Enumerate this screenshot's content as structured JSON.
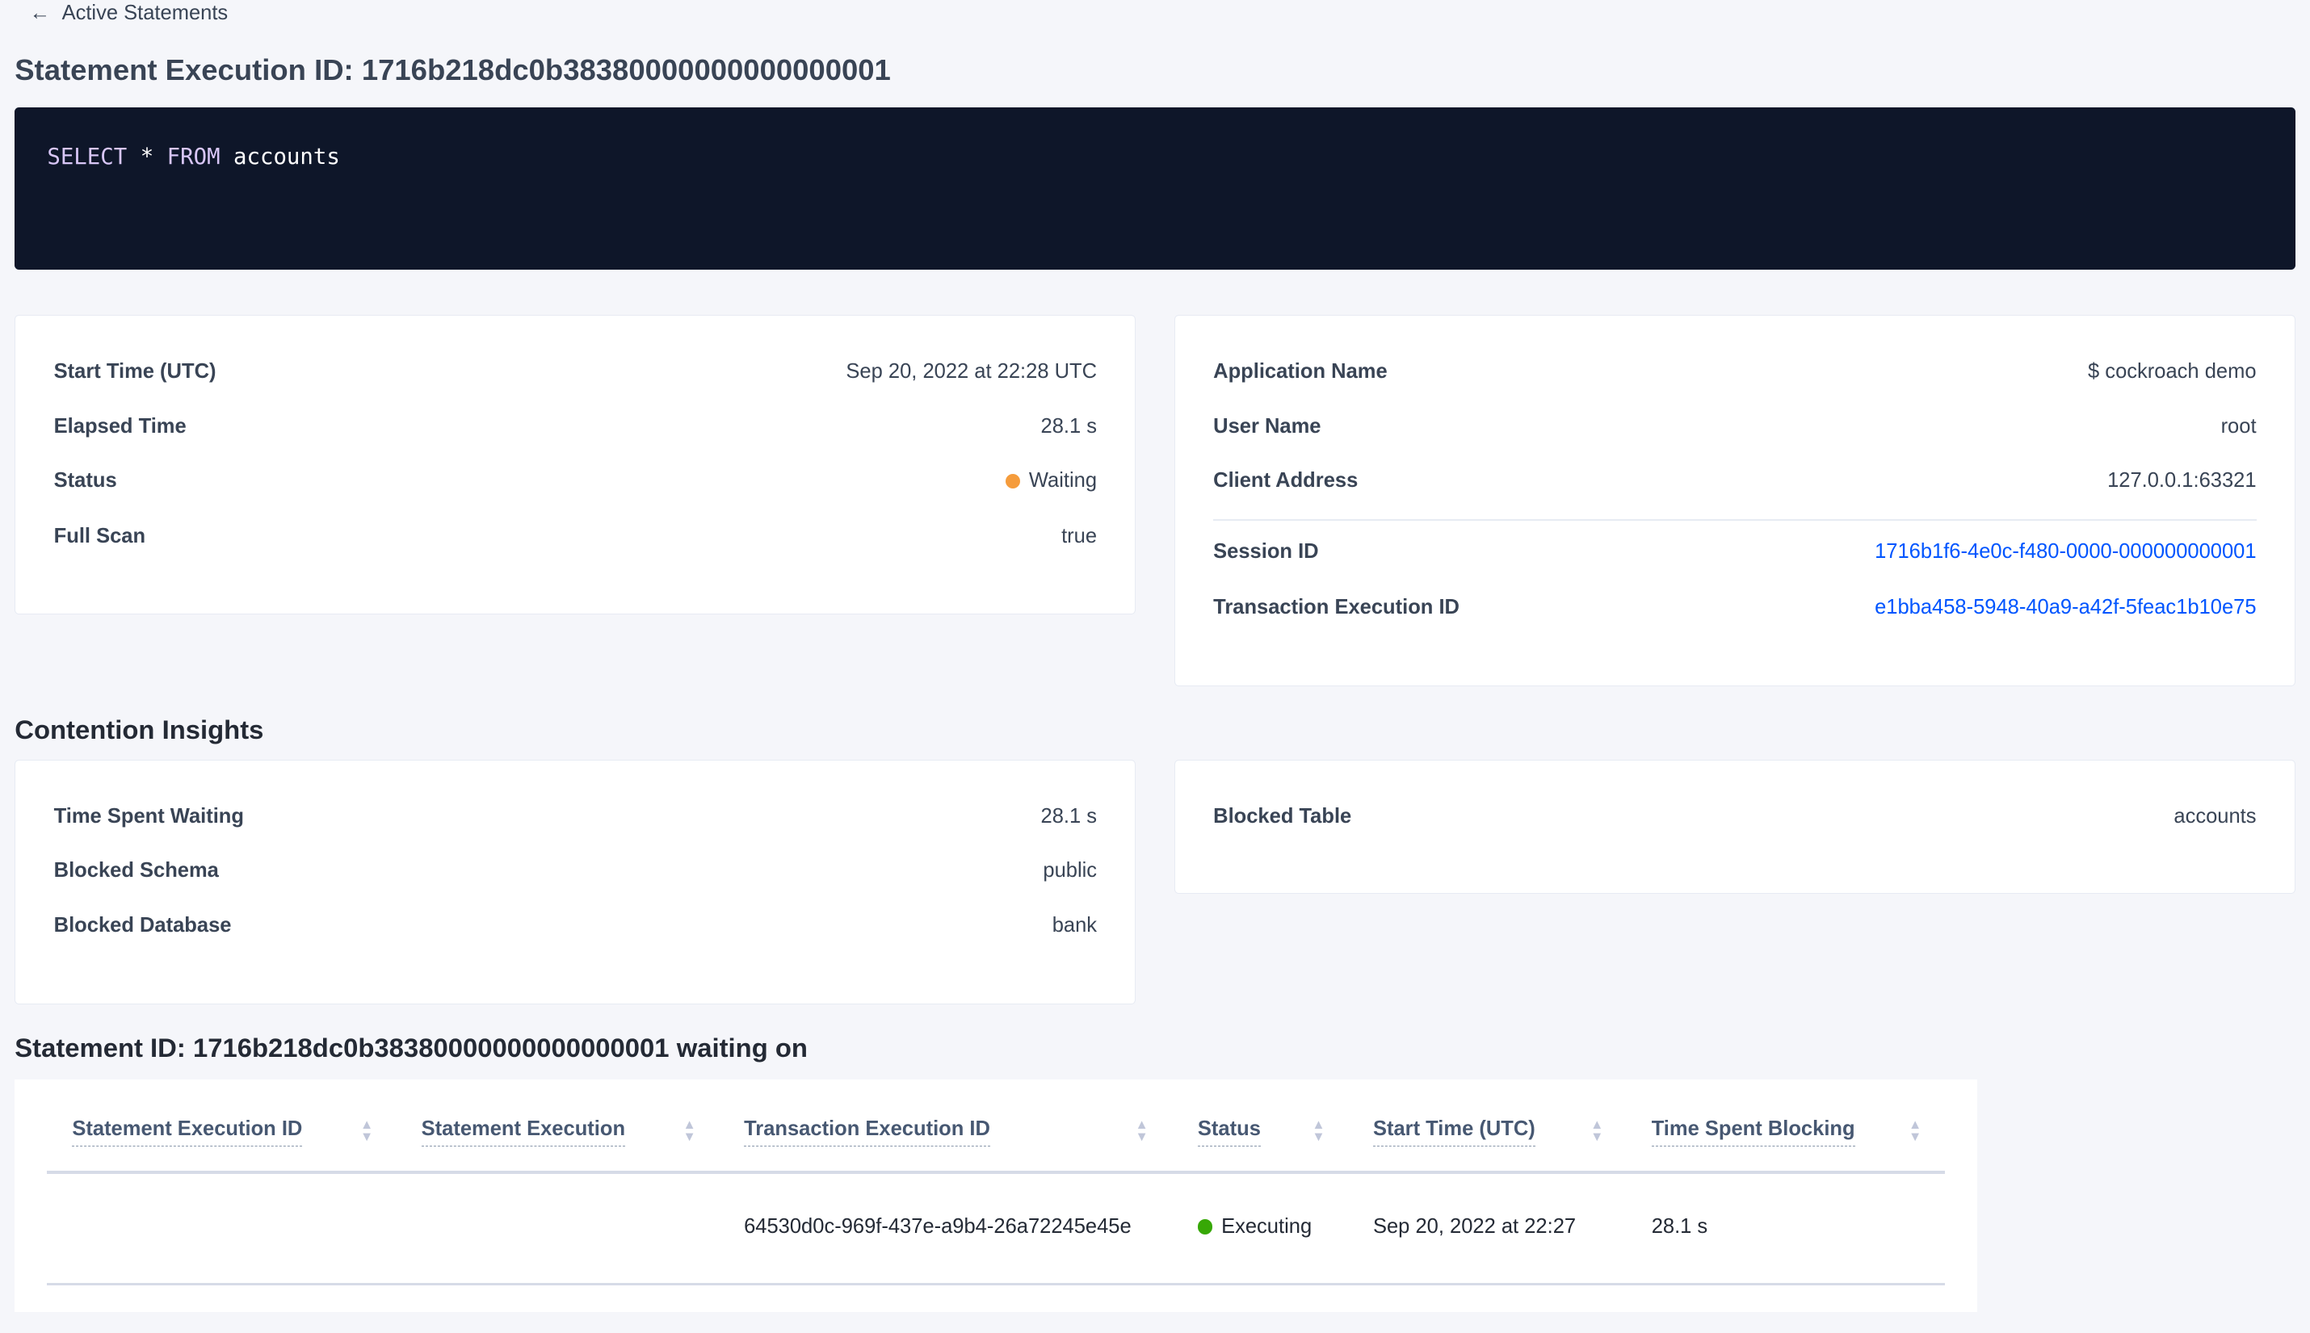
{
  "nav": {
    "back_label": "Active Statements",
    "back_icon": "arrow-left-icon"
  },
  "page_title": "Statement Execution ID: 1716b218dc0b38380000000000000001",
  "query": {
    "kw1": "SELECT",
    "star": "*",
    "kw2": "FROM",
    "table": "accounts"
  },
  "summary_left": [
    {
      "label": "Start Time (UTC)",
      "value": "Sep 20, 2022 at 22:28 UTC"
    },
    {
      "label": "Elapsed Time",
      "value": "28.1 s"
    },
    {
      "label": "Status",
      "value": "Waiting",
      "color": "#f59c3c"
    },
    {
      "label": "Full Scan",
      "value": "true"
    }
  ],
  "summary_right": [
    {
      "label": "Application Name",
      "value": "$ cockroach demo"
    },
    {
      "label": "User Name",
      "value": "root"
    },
    {
      "label": "Client Address",
      "value": "127.0.0.1:63321"
    },
    {
      "label": "Session ID",
      "value": "1716b1f6-4e0c-f480-0000-000000000001"
    },
    {
      "label": "Transaction Execution ID",
      "value": "e1bba458-5948-40a9-a42f-5feac1b10e75"
    }
  ],
  "contention": {
    "heading": "Contention Insights",
    "left": [
      {
        "label": "Time Spent Waiting",
        "value": "28.1 s"
      },
      {
        "label": "Blocked Schema",
        "value": "public"
      },
      {
        "label": "Blocked Database",
        "value": "bank"
      }
    ],
    "right": [
      {
        "label": "Blocked Table",
        "value": "accounts"
      }
    ]
  },
  "waiting": {
    "heading": "Statement ID: 1716b218dc0b38380000000000000001 waiting on",
    "columns": [
      "Statement Execution ID",
      "Statement Execution",
      "Transaction Execution ID",
      "Status",
      "Start Time (UTC)",
      "Time Spent Blocking"
    ],
    "rows": [
      {
        "stmt_id": "",
        "stmt": "",
        "txn_id": "64530d0c-969f-437e-a9b4-26a72245e45e",
        "status": "Executing",
        "status_color": "#37a806",
        "start": "Sep 20, 2022 at 22:27",
        "blocking": "28.1 s"
      }
    ]
  }
}
